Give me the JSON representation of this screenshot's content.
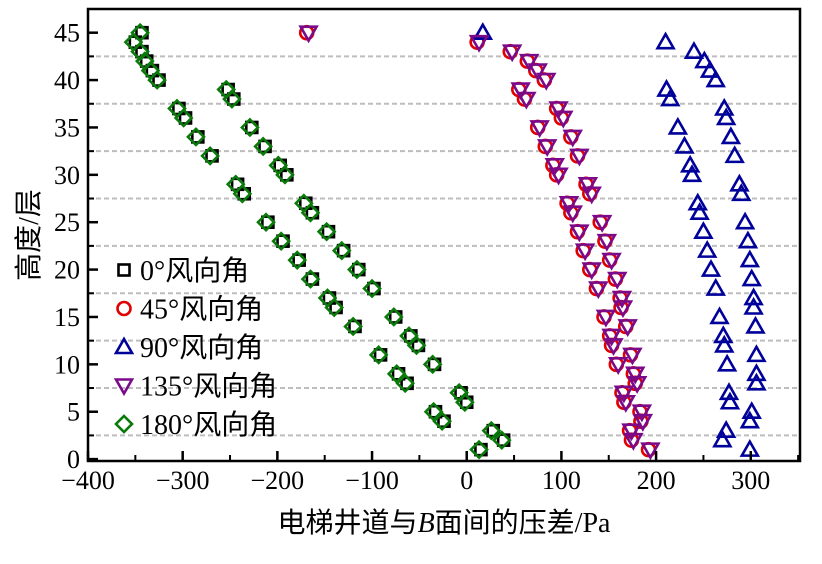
{
  "chart_data": {
    "type": "scatter",
    "title": "",
    "xlabel_parts": [
      "电梯井道与",
      "B",
      "面间的压差/Pa"
    ],
    "ylabel": "高度/层",
    "xlim": [
      -400,
      352
    ],
    "ylim": [
      -0.2,
      47.5
    ],
    "xticks": [
      -400,
      -300,
      -200,
      -100,
      0,
      100,
      200,
      300
    ],
    "xtick_labels": [
      "−400",
      "−300",
      "−200",
      "−100",
      "0",
      "100",
      "200",
      "300"
    ],
    "yticks": [
      0,
      5,
      10,
      15,
      20,
      25,
      30,
      35,
      40,
      45
    ],
    "ytick_labels": [
      "0",
      "5",
      "10",
      "15",
      "20",
      "25",
      "30",
      "35",
      "40",
      "45"
    ],
    "gridlines_y": [
      2.5,
      7.5,
      12.5,
      17.5,
      22.5,
      27.5,
      32.5,
      37.5,
      42.5
    ],
    "grid": "horizontal dashed",
    "legend_position": "bottom-left",
    "y": [
      1,
      2,
      3,
      4,
      5,
      6,
      7,
      8,
      9,
      10,
      11,
      12,
      13,
      14,
      15,
      16,
      17,
      18,
      19,
      20,
      21,
      22,
      23,
      24,
      25,
      26,
      27,
      28,
      29,
      30,
      31,
      32,
      33,
      34,
      35,
      36,
      37,
      38,
      39,
      40,
      41,
      42,
      43,
      44,
      45
    ],
    "series": [
      {
        "name": "0°风向角",
        "marker": "square",
        "color": "#000000",
        "x": [
          15,
          39,
          28,
          -24,
          -33,
          0,
          -6,
          -63,
          -72,
          -34,
          -91,
          -51,
          -59,
          -118,
          -75,
          -138,
          -145,
          -98,
          -163,
          -114,
          -177,
          -130,
          -194,
          -146,
          -210,
          -163,
          -170,
          -235,
          -242,
          -190,
          -197,
          -269,
          -213,
          -284,
          -227,
          -297,
          -304,
          -246,
          -252,
          -325,
          -332,
          -338,
          -343,
          -350,
          -343
        ]
      },
      {
        "name": "45°风向角",
        "marker": "circle",
        "color": "#e00000",
        "x": [
          192,
          174,
          172,
          184,
          183,
          166,
          164,
          178,
          176,
          158,
          173,
          153,
          151,
          168,
          145,
          163,
          162,
          137,
          157,
          130,
          151,
          123,
          146,
          117,
          141,
          110,
          106,
          130,
          126,
          95,
          91,
          117,
          83,
          110,
          75,
          100,
          95,
          61,
          55,
          82,
          73,
          64,
          46,
          11,
          -169
        ]
      },
      {
        "name": "90°风向角",
        "marker": "triangle-up",
        "color": "#00009a",
        "x": [
          299,
          270,
          274,
          299,
          301,
          278,
          277,
          306,
          306,
          275,
          306,
          272,
          271,
          305,
          267,
          303,
          303,
          263,
          301,
          258,
          299,
          254,
          297,
          250,
          294,
          246,
          244,
          290,
          288,
          238,
          236,
          283,
          230,
          279,
          223,
          274,
          272,
          215,
          211,
          263,
          257,
          251,
          240,
          210,
          17
        ]
      },
      {
        "name": "135°风向角",
        "marker": "triangle-down",
        "color": "#7a0a8a",
        "x": [
          194,
          176,
          174,
          186,
          185,
          168,
          166,
          180,
          178,
          160,
          175,
          155,
          153,
          170,
          147,
          165,
          164,
          139,
          159,
          132,
          153,
          125,
          148,
          119,
          143,
          112,
          108,
          132,
          128,
          97,
          93,
          119,
          85,
          112,
          77,
          102,
          97,
          63,
          57,
          84,
          75,
          66,
          48,
          13,
          -167
        ]
      },
      {
        "name": "180°风向角",
        "marker": "diamond",
        "color": "#0a7a0a",
        "x": [
          13,
          37,
          26,
          -26,
          -35,
          -2,
          -8,
          -65,
          -74,
          -36,
          -93,
          -53,
          -61,
          -120,
          -77,
          -140,
          -147,
          -100,
          -165,
          -116,
          -179,
          -132,
          -196,
          -148,
          -212,
          -165,
          -172,
          -237,
          -244,
          -192,
          -199,
          -271,
          -215,
          -286,
          -229,
          -299,
          -306,
          -248,
          -254,
          -327,
          -334,
          -340,
          -345,
          -352,
          -345
        ]
      }
    ]
  }
}
